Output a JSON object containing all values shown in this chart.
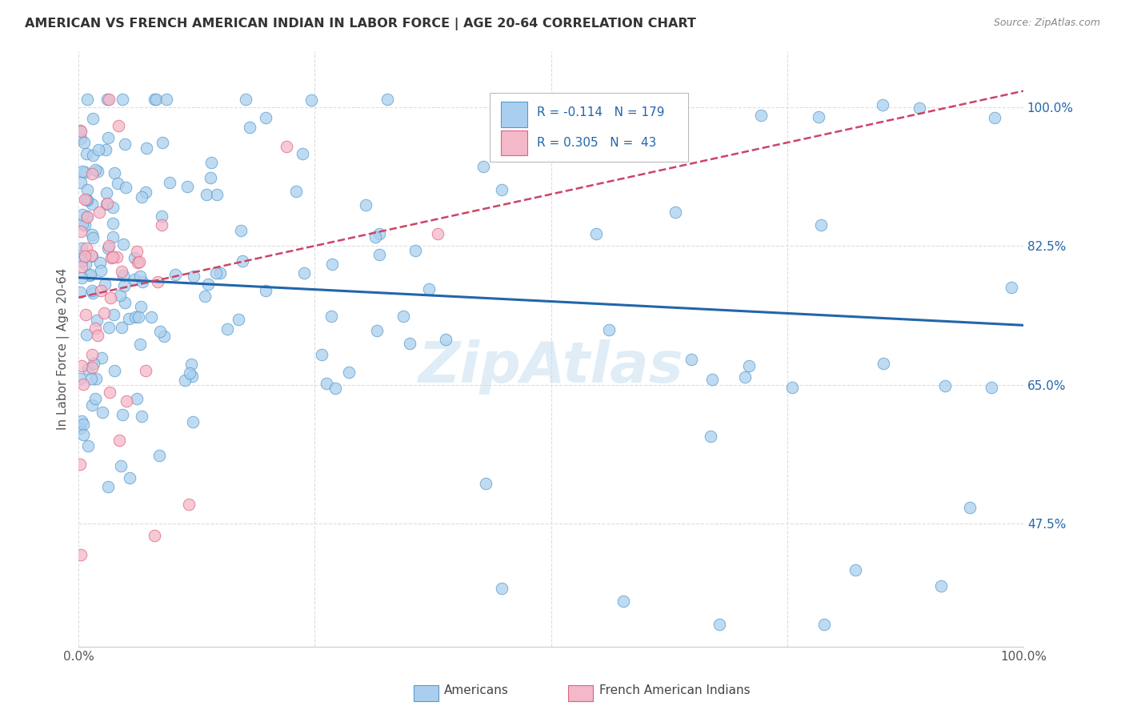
{
  "title": "AMERICAN VS FRENCH AMERICAN INDIAN IN LABOR FORCE | AGE 20-64 CORRELATION CHART",
  "source": "Source: ZipAtlas.com",
  "ylabel": "In Labor Force | Age 20-64",
  "xlim": [
    0.0,
    1.0
  ],
  "ylim": [
    0.32,
    1.07
  ],
  "yticks": [
    0.475,
    0.65,
    0.825,
    1.0
  ],
  "ytick_labels": [
    "47.5%",
    "65.0%",
    "82.5%",
    "100.0%"
  ],
  "xtick_vals": [
    0.0,
    0.25,
    0.5,
    0.75,
    1.0
  ],
  "xtick_labels": [
    "0.0%",
    "",
    "",
    "",
    "100.0%"
  ],
  "blue_R": "-0.114",
  "blue_N": "179",
  "pink_R": "0.305",
  "pink_N": "43",
  "blue_color": "#aacfee",
  "pink_color": "#f4b8c8",
  "blue_edge_color": "#5599cc",
  "pink_edge_color": "#e06080",
  "blue_line_color": "#2266aa",
  "pink_line_color": "#cc4466",
  "grid_color": "#dddddd",
  "background_color": "#ffffff",
  "watermark": "ZipAtlas",
  "legend_label_blue": "Americans",
  "legend_label_pink": "French American Indians",
  "blue_trend_x0": 0.0,
  "blue_trend_y0": 0.785,
  "blue_trend_x1": 1.0,
  "blue_trend_y1": 0.725,
  "pink_trend_x0": 0.0,
  "pink_trend_y0": 0.76,
  "pink_trend_x1": 1.0,
  "pink_trend_y1": 1.02
}
